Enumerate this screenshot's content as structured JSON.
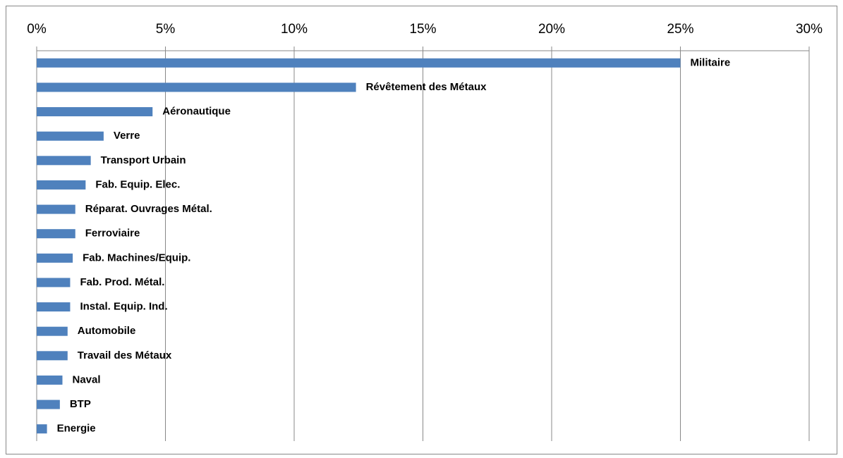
{
  "chart_data": {
    "type": "bar",
    "orientation": "horizontal",
    "color": "#4f81bd",
    "grid": true,
    "categories": [
      "Militaire",
      "Révêtement des Métaux",
      "Aéronautique",
      "Verre",
      "Transport Urbain",
      "Fab. Equip. Elec.",
      "Réparat. Ouvrages Métal.",
      "Ferroviaire",
      "Fab. Machines/Equip.",
      "Fab. Prod. Métal.",
      "Instal. Equip. Ind.",
      "Automobile",
      "Travail des Métaux",
      "Naval",
      "BTP",
      "Energie"
    ],
    "values": [
      25.0,
      12.4,
      4.5,
      2.6,
      2.1,
      1.9,
      1.5,
      1.5,
      1.4,
      1.3,
      1.3,
      1.2,
      1.2,
      1.0,
      0.9,
      0.4
    ],
    "xlim": [
      0,
      30
    ],
    "xticks": [
      {
        "value": 0,
        "label": "0%"
      },
      {
        "value": 5,
        "label": "5%"
      },
      {
        "value": 10,
        "label": "10%"
      },
      {
        "value": 15,
        "label": "15%"
      },
      {
        "value": 20,
        "label": "20%"
      },
      {
        "value": 25,
        "label": "25%"
      },
      {
        "value": 30,
        "label": "30%"
      }
    ]
  }
}
